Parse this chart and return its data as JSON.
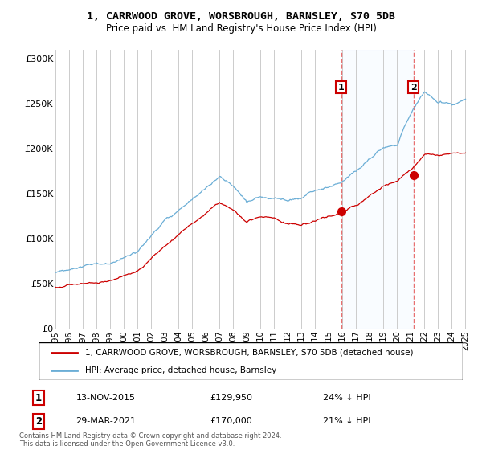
{
  "title": "1, CARRWOOD GROVE, WORSBROUGH, BARNSLEY, S70 5DB",
  "subtitle": "Price paid vs. HM Land Registry's House Price Index (HPI)",
  "legend_line1": "1, CARRWOOD GROVE, WORSBROUGH, BARNSLEY, S70 5DB (detached house)",
  "legend_line2": "HPI: Average price, detached house, Barnsley",
  "annotation1_date": "13-NOV-2015",
  "annotation1_price": "£129,950",
  "annotation1_hpi": "24% ↓ HPI",
  "annotation1_year": 2015.9,
  "annotation1_value": 129950,
  "annotation2_date": "29-MAR-2021",
  "annotation2_price": "£170,000",
  "annotation2_hpi": "21% ↓ HPI",
  "annotation2_year": 2021.2,
  "annotation2_value": 170000,
  "hpi_color": "#6baed6",
  "price_color": "#cc0000",
  "vline_color": "#e87070",
  "span_color": "#ddeeff",
  "background_color": "#ffffff",
  "grid_color": "#cccccc",
  "ylim": [
    0,
    310000
  ],
  "xlim_start": 1995.0,
  "xlim_end": 2025.5,
  "footer": "Contains HM Land Registry data © Crown copyright and database right 2024.\nThis data is licensed under the Open Government Licence v3.0."
}
